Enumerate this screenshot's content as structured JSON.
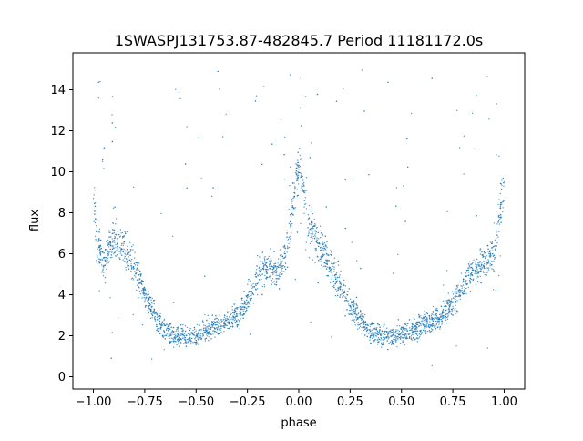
{
  "chart_data": {
    "type": "scatter",
    "title": "1SWASPJ131753.87-482845.7 Period 11181172.0s",
    "xlabel": "phase",
    "ylabel": "flux",
    "xlim": [
      -1.1,
      1.1
    ],
    "ylim": [
      -0.6,
      15.8
    ],
    "xticks": [
      -1.0,
      -0.75,
      -0.5,
      -0.25,
      0.0,
      0.25,
      0.5,
      0.75,
      1.0
    ],
    "xtick_labels": [
      "−1.00",
      "−0.75",
      "−0.50",
      "−0.25",
      "0.00",
      "0.25",
      "0.50",
      "0.75",
      "1.00"
    ],
    "yticks": [
      0,
      2,
      4,
      6,
      8,
      10,
      12,
      14
    ],
    "ytick_labels": [
      "0",
      "2",
      "4",
      "6",
      "8",
      "10",
      "12",
      "14"
    ],
    "grid": false,
    "legend": "none",
    "marker_color": "#1f77b4",
    "series": [
      {
        "name": "",
        "note_profile_points": [
          [
            -1.0,
            9.0
          ],
          [
            -0.98,
            6.5
          ],
          [
            -0.95,
            5.5
          ],
          [
            -0.9,
            6.8
          ],
          [
            -0.85,
            6.2
          ],
          [
            -0.8,
            5.5
          ],
          [
            -0.75,
            4.0
          ],
          [
            -0.7,
            3.0
          ],
          [
            -0.65,
            2.2
          ],
          [
            -0.6,
            2.0
          ],
          [
            -0.55,
            2.0
          ],
          [
            -0.5,
            2.0
          ],
          [
            -0.45,
            2.3
          ],
          [
            -0.4,
            2.5
          ],
          [
            -0.35,
            2.6
          ],
          [
            -0.3,
            3.0
          ],
          [
            -0.25,
            3.8
          ],
          [
            -0.2,
            5.0
          ],
          [
            -0.15,
            5.5
          ],
          [
            -0.1,
            5.0
          ],
          [
            -0.05,
            6.5
          ],
          [
            0.0,
            10.5
          ],
          [
            0.05,
            7.5
          ],
          [
            0.1,
            6.5
          ],
          [
            0.15,
            5.5
          ],
          [
            0.2,
            4.5
          ],
          [
            0.25,
            3.5
          ],
          [
            0.3,
            2.8
          ],
          [
            0.35,
            2.2
          ],
          [
            0.4,
            2.0
          ],
          [
            0.45,
            2.0
          ],
          [
            0.5,
            2.0
          ],
          [
            0.55,
            2.3
          ],
          [
            0.6,
            2.5
          ],
          [
            0.65,
            2.7
          ],
          [
            0.7,
            3.0
          ],
          [
            0.75,
            3.6
          ],
          [
            0.8,
            4.5
          ],
          [
            0.85,
            5.2
          ],
          [
            0.9,
            5.5
          ],
          [
            0.95,
            6.0
          ],
          [
            1.0,
            9.5
          ]
        ]
      }
    ]
  }
}
